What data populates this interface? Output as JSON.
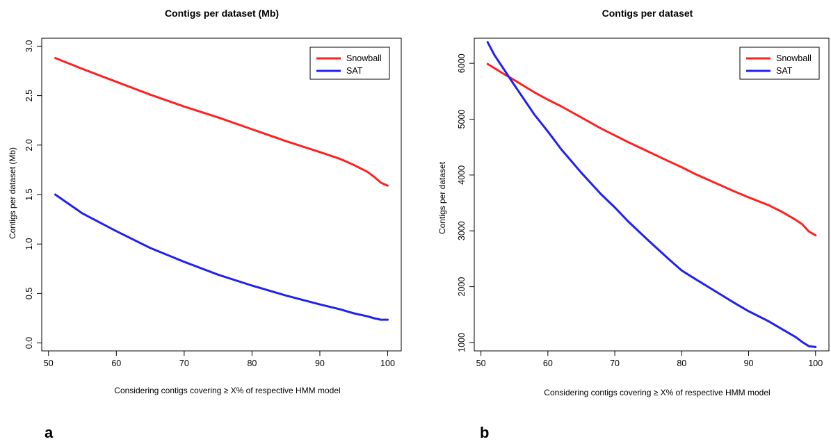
{
  "chart_data": [
    {
      "type": "line",
      "panel_label": "a",
      "title": "Contigs per dataset (Mb)",
      "xlabel": "Considering contigs covering ≥ X% of respective HMM model",
      "ylabel": "Contigs per dataset (Mb)",
      "xlim": [
        49,
        102
      ],
      "ylim": [
        -0.08,
        3.08
      ],
      "xticks": [
        50,
        60,
        70,
        80,
        90,
        100
      ],
      "yticks": [
        0.0,
        0.5,
        1.0,
        1.5,
        2.0,
        2.5,
        3.0
      ],
      "ytick_labels": [
        "0.0",
        "0.5",
        "1.0",
        "1.5",
        "2.0",
        "2.5",
        "3.0"
      ],
      "legend": "top-right",
      "x": [
        51,
        55,
        60,
        65,
        70,
        75,
        80,
        85,
        90,
        93,
        95,
        97,
        98,
        99,
        100
      ],
      "series": [
        {
          "name": "Snowball",
          "color": "#ff2020",
          "values": [
            2.88,
            2.77,
            2.64,
            2.51,
            2.39,
            2.28,
            2.16,
            2.04,
            1.93,
            1.86,
            1.8,
            1.73,
            1.68,
            1.62,
            1.59
          ]
        },
        {
          "name": "SAT",
          "color": "#2020f0",
          "values": [
            1.5,
            1.31,
            1.13,
            0.96,
            0.82,
            0.69,
            0.58,
            0.48,
            0.39,
            0.34,
            0.3,
            0.27,
            0.25,
            0.235,
            0.235
          ]
        }
      ]
    },
    {
      "type": "line",
      "panel_label": "b",
      "title": "Contigs per dataset",
      "xlabel": "Considering contigs covering ≥ X% of respective HMM model",
      "ylabel": "Contigs per dataset",
      "xlim": [
        49,
        102
      ],
      "ylim": [
        850,
        6450
      ],
      "xticks": [
        50,
        60,
        70,
        80,
        90,
        100
      ],
      "yticks": [
        1000,
        2000,
        3000,
        4000,
        5000,
        6000
      ],
      "ytick_labels": [
        "1000",
        "2000",
        "3000",
        "4000",
        "5000",
        "6000"
      ],
      "legend": "top-right",
      "x": [
        51,
        52,
        53,
        55,
        58,
        60,
        62,
        65,
        68,
        70,
        72,
        75,
        78,
        80,
        82,
        85,
        88,
        90,
        93,
        95,
        97,
        98,
        99,
        100
      ],
      "series": [
        {
          "name": "Snowball",
          "color": "#ff2020",
          "values": [
            5990,
            5915,
            5840,
            5700,
            5480,
            5350,
            5230,
            5030,
            4830,
            4710,
            4590,
            4420,
            4250,
            4140,
            4020,
            3860,
            3700,
            3600,
            3460,
            3340,
            3200,
            3120,
            2990,
            2920
          ]
        },
        {
          "name": "SAT",
          "color": "#2020f0",
          "values": [
            6380,
            6150,
            5970,
            5610,
            5080,
            4780,
            4460,
            4040,
            3650,
            3420,
            3170,
            2830,
            2500,
            2290,
            2140,
            1920,
            1700,
            1560,
            1380,
            1240,
            1100,
            1010,
            935,
            920
          ]
        }
      ]
    }
  ]
}
